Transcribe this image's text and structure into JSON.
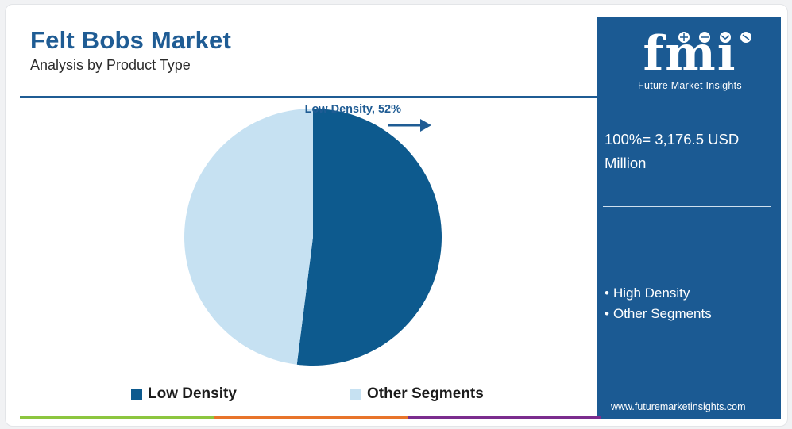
{
  "chart_data": {
    "type": "pie",
    "title": "Felt Bobs Market",
    "subtitle": "Analysis by Product Type",
    "categories": [
      "Low Density",
      "Other Segments"
    ],
    "values": [
      52,
      48
    ],
    "colors": [
      "#0d5a8e",
      "#c6e1f2"
    ],
    "data_labels": [
      "Low Density, 52%"
    ],
    "legend": {
      "placement": "bottom",
      "entries": [
        "Low Density",
        "Other Segments"
      ]
    }
  },
  "side_panel": {
    "logo_text": "fmi",
    "logo_tagline": "Future Market Insights",
    "total_label": "100%= 3,176.5 USD Million",
    "other_segments": [
      "High Density",
      "Other Segments"
    ],
    "bullet": "•",
    "website": "www.futuremarketinsights.com",
    "background_color": "#1b5a93"
  },
  "bottom_bar_colors": [
    "#8cc63f",
    "#e8742a",
    "#7b2d8e"
  ],
  "icons": {
    "callout_arrow": "arrow-right-icon",
    "logo_ornaments": "globe-icons"
  }
}
